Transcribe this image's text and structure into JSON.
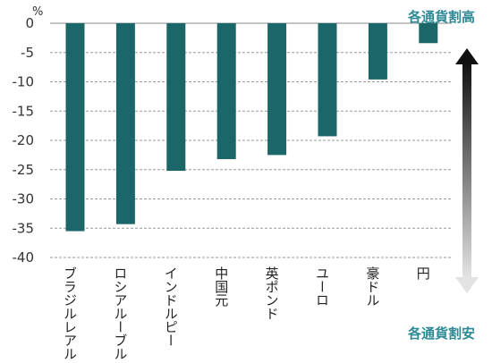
{
  "chart_data": {
    "type": "bar",
    "unit": "%",
    "categories": [
      "ブラジルレアル",
      "ロシアルーブル",
      "インドルピー",
      "中国元",
      "英ポンド",
      "ユーロ",
      "豪ドル",
      "円"
    ],
    "values": [
      -35.5,
      -34.3,
      -25.2,
      -23.2,
      -22.5,
      -19.3,
      -9.6,
      -3.4
    ],
    "ylim": [
      -40,
      0
    ],
    "yticks": [
      0,
      -5,
      -10,
      -15,
      -20,
      -25,
      -30,
      -35,
      -40
    ],
    "grid": true,
    "bar_color": "#1b6669",
    "annotations": {
      "top": "各通貨割高",
      "bottom": "各通貨割安"
    },
    "annotation_color": "#2d8a94"
  }
}
